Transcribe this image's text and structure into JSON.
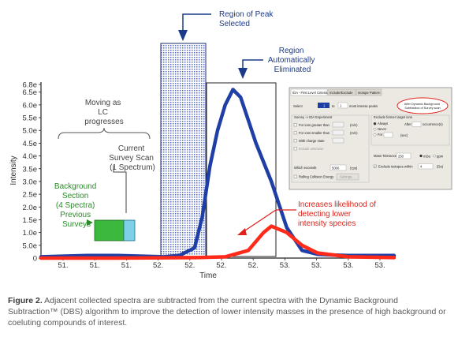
{
  "chart_data": {
    "type": "line",
    "xlabel": "Time",
    "ylabel": "Intensity",
    "x_tick_labels": [
      "51.",
      "51.",
      "51.",
      "52.",
      "52.",
      "52.",
      "52.",
      "53.",
      "53.",
      "53.",
      "53."
    ],
    "y_tick_labels": [
      "0",
      "5.0e",
      "1.0e",
      "1.5e",
      "2.0e",
      "2.5e",
      "3.0e",
      "3.5e",
      "4.0e",
      "4.5e",
      "5.0e",
      "5.5e",
      "6.0e",
      "6.5e",
      "6.8e"
    ],
    "y_tick_values": [
      0,
      0.5,
      1.0,
      1.5,
      2.0,
      2.5,
      3.0,
      3.5,
      4.0,
      4.5,
      5.0,
      5.5,
      6.0,
      6.5,
      6.8
    ],
    "ylim": [
      0,
      6.8
    ],
    "xlim": [
      51.0,
      53.3
    ],
    "series": [
      {
        "color": "#1f3fa6",
        "x": [
          51.0,
          51.3,
          51.5,
          51.8,
          51.9,
          52.0,
          52.05,
          52.1,
          52.15,
          52.2,
          52.25,
          52.3,
          52.35,
          52.4,
          52.5,
          52.6,
          52.7,
          52.8,
          52.9,
          53.0,
          53.1,
          53.3
        ],
        "y": [
          0.05,
          0.1,
          0.1,
          0.05,
          0.1,
          0.4,
          1.6,
          3.6,
          5.0,
          6.0,
          6.6,
          6.3,
          5.4,
          4.5,
          3.0,
          1.2,
          0.3,
          0.15,
          0.12,
          0.1,
          0.1,
          0.1
        ]
      },
      {
        "color": "#ff2a1a",
        "x": [
          51.0,
          51.5,
          52.0,
          52.2,
          52.35,
          52.45,
          52.5,
          52.6,
          52.7,
          52.8,
          53.0,
          53.3
        ],
        "y": [
          0.0,
          0.0,
          0.02,
          0.05,
          0.3,
          1.0,
          1.25,
          1.0,
          0.5,
          0.2,
          0.05,
          0.02
        ]
      }
    ],
    "annotations": {
      "peak_label": "Region of Peak Selected",
      "eliminated_label": "Region Automatically Eliminated",
      "moving_label": "Moving as LC progresses",
      "current_scan_label": "Current Survey Scan (1 Spectrum)",
      "background_label": "Background Section (4 Spectra) Previous Surveys",
      "increase_label": "Increases likelihood of detecting lower intensity species"
    }
  },
  "dialog": {
    "tabs": [
      "IDA - First Level Criteria",
      "Include/Exclude",
      "Isotope Pattern"
    ],
    "select_label": "Select",
    "select_value": "1",
    "to_label": "to",
    "to_value": "1",
    "most_intense_label": "most intense peaks",
    "switch_title": "Survey -> IDA Experiment",
    "switch_rows": [
      "For ions greater than",
      "For ions smaller than",
      "With charge state",
      "Include unknown"
    ],
    "unit_mz": "(m/z)",
    "exceeds_label": "Which exceeds",
    "exceeds_value": "5000",
    "exceeds_unit": "(cps)",
    "rolling_label": "Rolling Collision Energy",
    "settings_button": "Settings...",
    "exclude_title": "Exclude former target ions",
    "exclude_options": [
      "Always",
      "Never",
      "For"
    ],
    "after_label": "After",
    "occurrences_label": "occurrence(s)",
    "sec_label": "(sec)",
    "mass_tol_label": "Mass Tolerance",
    "mass_tol_value": "250",
    "mass_tol_unit_mda": "mDa",
    "mass_tol_unit_ppm": "ppm",
    "exclude_isotopes_label": "Exclude isotopes within",
    "exclude_isotopes_value": "4",
    "exclude_isotopes_unit": "(Da)",
    "dbs_note": "After Dynamic Background Subtraction of Survey scan"
  },
  "caption": {
    "label": "Figure 2.",
    "text": "Adjacent collected spectra are subtracted from the current spectra with the Dynamic Background Subtraction™ (DBS) algorithm to improve the detection of lower intensity masses in the presence of high background or coeluting compounds of interest."
  }
}
